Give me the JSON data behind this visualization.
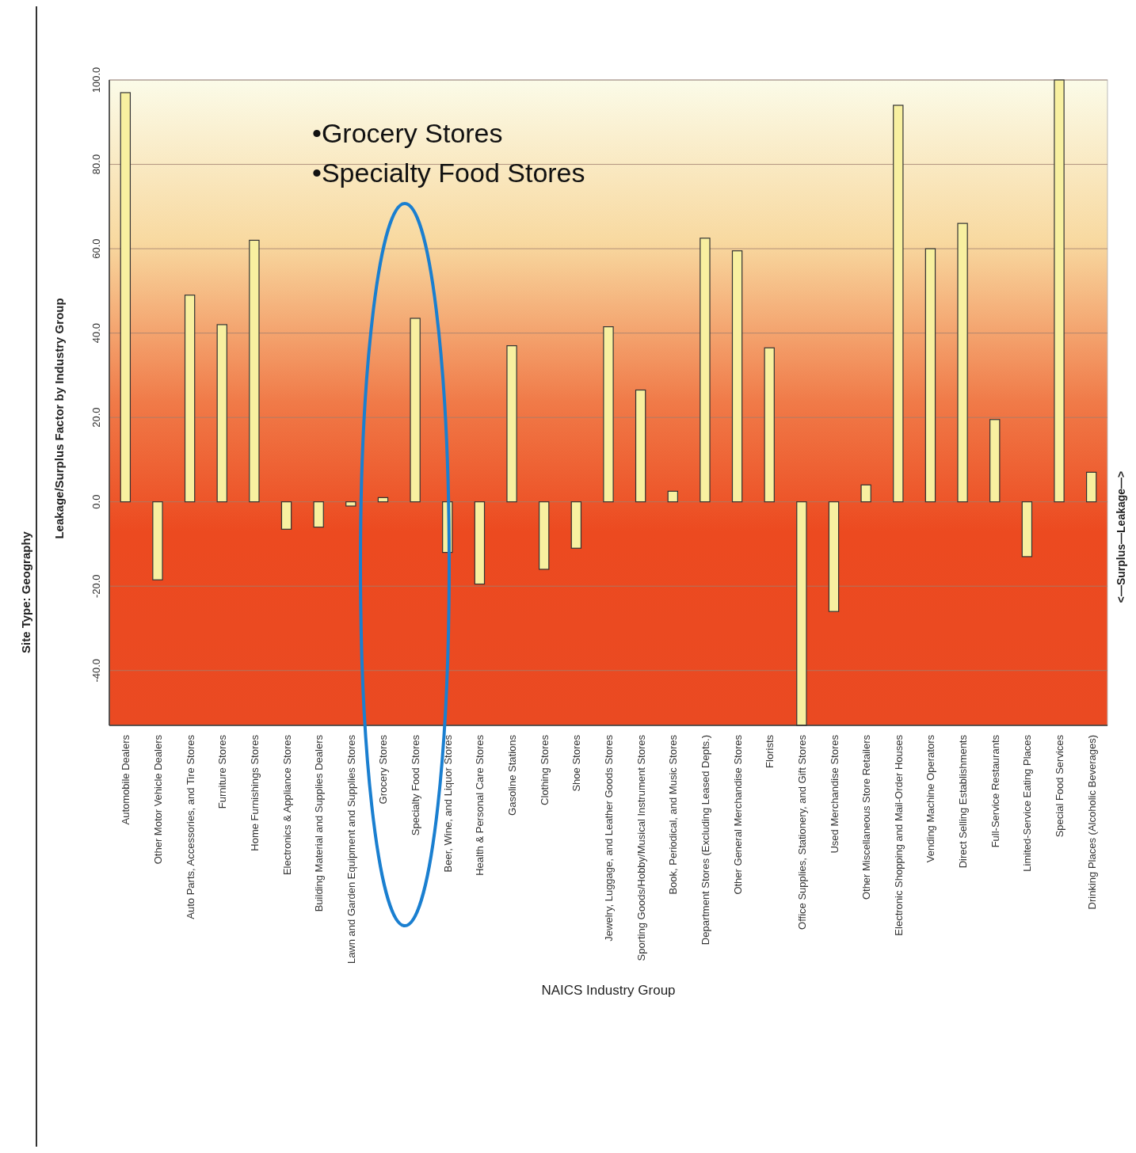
{
  "chart_data": {
    "type": "bar",
    "ylabel": "Leakage/Surplus Factor by Industry Group",
    "xlabel": "NAICS Industry Group",
    "categories": [
      "Automobile Dealers",
      "Other Motor Vehicle Dealers",
      "Auto Parts, Accessories, and Tire Stores",
      "Furniture Stores",
      "Home Furnishings Stores",
      "Electronics & Appliance Stores",
      "Building Material and Supplies Dealers",
      "Lawn and Garden Equipment and Supplies Stores",
      "Grocery Stores",
      "Specialty Food Stores",
      "Beer, Wine, and Liquor Stores",
      "Health & Personal Care Stores",
      "Gasoline Stations",
      "Clothing Stores",
      "Shoe Stores",
      "Jewelry, Luggage, and Leather Goods Stores",
      "Sporting Goods/Hobby/Musical Instrument Stores",
      "Book, Periodical, and Music Stores",
      "Department Stores (Excluding Leased Depts.)",
      "Other General Merchandise Stores",
      "Florists",
      "Office Supplies, Stationery, and Gift Stores",
      "Used Merchandise Stores",
      "Other Miscellaneous Store Retailers",
      "Electronic Shopping and Mail-Order Houses",
      "Vending Machine Operators",
      "Direct Selling Establishments",
      "Full-Service Restaurants",
      "Limited-Service Eating Places",
      "Special Food Services",
      "Drinking Places (Alcoholic Beverages)"
    ],
    "values": [
      97,
      -18.5,
      49,
      42,
      62,
      -6.5,
      -6,
      -1,
      1,
      43.5,
      -12,
      -19.5,
      37,
      -16,
      -11,
      41.5,
      26.5,
      2.5,
      62.5,
      59.5,
      36.5,
      -53,
      -26,
      4,
      94,
      60,
      66,
      19.5,
      -13,
      100,
      7
    ],
    "color": "#f8f0a0",
    "ylim": [
      -53,
      100
    ],
    "yticks": [
      {
        "value": -40,
        "label": "-40.0"
      },
      {
        "value": -20,
        "label": "-20.0"
      },
      {
        "value": 0,
        "label": "0.0"
      },
      {
        "value": 20,
        "label": "20.0"
      },
      {
        "value": 40,
        "label": "40.0"
      },
      {
        "value": 60,
        "label": "60.0"
      },
      {
        "value": 80,
        "label": "80.0"
      },
      {
        "value": 100,
        "label": "100.0"
      }
    ],
    "grid": "y",
    "annotations": [
      "Site Type:   Geography",
      "<—Surplus—Leakage—>",
      "•Grocery Stores",
      "•Specialty Food Stores"
    ]
  }
}
